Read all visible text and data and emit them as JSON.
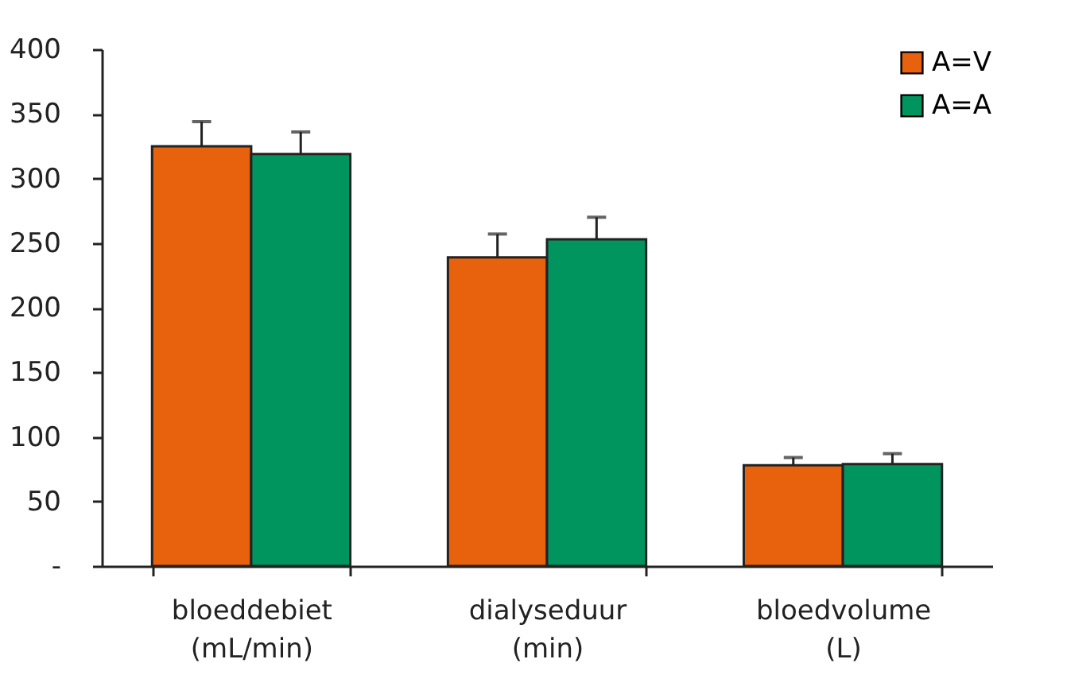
{
  "chart_data": {
    "type": "bar",
    "categories": [
      "bloeddebiet\n(mL/min)",
      "dialyseduur\n(min)",
      "bloedvolume\n(L)"
    ],
    "series": [
      {
        "name": "A=V",
        "color": "#e8620e",
        "values": [
          325,
          239,
          78
        ],
        "errors": [
          19,
          18,
          6
        ]
      },
      {
        "name": "A=A",
        "color": "#00945e",
        "values": [
          319,
          253,
          79
        ],
        "errors": [
          17,
          17,
          8
        ]
      }
    ],
    "ylim": [
      0,
      400
    ],
    "yticks": [
      {
        "value": 0,
        "label": "-"
      },
      50,
      100,
      150,
      200,
      250,
      300,
      350,
      400
    ],
    "grid": false,
    "legend": "top right"
  }
}
